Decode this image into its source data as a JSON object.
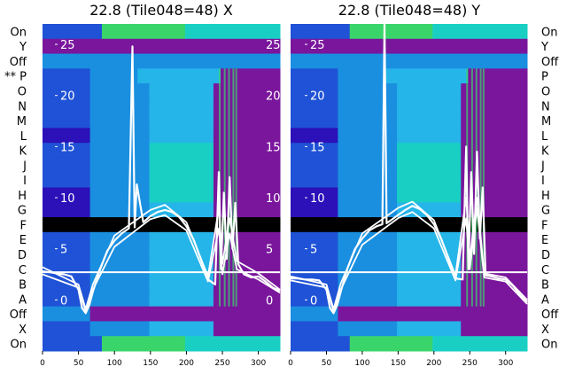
{
  "colors": {
    "band_colors": [
      "#2c10b8",
      "#1f52d6",
      "#1a8fe0",
      "#25b5e8",
      "#19cfc4",
      "#3ad56a",
      "#22e81c"
    ],
    "purple": "#7a169c",
    "trace": "#ffffff",
    "gap": "#000000"
  },
  "chart_data": [
    {
      "type": "heatmap",
      "title": "22.8 (Tile048=48) X",
      "row_labels": [
        "On",
        "Y",
        "Off",
        "** P",
        "O",
        "N",
        "M",
        "L",
        "K",
        "J",
        "I",
        "H",
        "G",
        "F",
        "E",
        "D",
        "C",
        "B",
        "A",
        "Off",
        "X",
        "On"
      ],
      "xlim": [
        0,
        330
      ],
      "ylim": [
        -5,
        27
      ],
      "x_ticks": [
        0,
        50,
        100,
        150,
        200,
        250,
        300
      ],
      "y_ticks": [
        0,
        5,
        10,
        15,
        20,
        25
      ],
      "grid": false,
      "series": [
        {
          "x": [
            0,
            10,
            20,
            30,
            40,
            50,
            55,
            60,
            65,
            70,
            80,
            90,
            100,
            110,
            120,
            125,
            128,
            131,
            140,
            150,
            160,
            170,
            180,
            190,
            200,
            210,
            220,
            230,
            240,
            245,
            248,
            252,
            256,
            260,
            264,
            268,
            272,
            280,
            290,
            300,
            310,
            320,
            330
          ],
          "y": [
            2.8,
            2.7,
            2.6,
            2.5,
            2.3,
            1.0,
            -0.8,
            -1.3,
            -0.5,
            0.8,
            3.0,
            4.8,
            5.8,
            6.5,
            7.0,
            24.8,
            7.1,
            11.3,
            7.6,
            8.2,
            8.6,
            8.8,
            8.6,
            8.1,
            7.2,
            5.9,
            4.0,
            2.0,
            1.5,
            12.5,
            3.0,
            10.5,
            4.0,
            12.0,
            5.0,
            9.5,
            3.5,
            2.5,
            2.2,
            2.3,
            1.8,
            1.2,
            0.9
          ]
        },
        {
          "x": [
            0,
            50,
            60,
            70,
            100,
            150,
            170,
            200,
            230,
            245,
            250,
            260,
            270,
            300,
            330
          ],
          "y": [
            2.5,
            1.2,
            -1.1,
            1.0,
            5.2,
            7.9,
            8.3,
            6.8,
            1.8,
            7.0,
            2.5,
            6.5,
            3.0,
            2.0,
            0.7
          ]
        },
        {
          "x": [
            0,
            50,
            60,
            70,
            100,
            150,
            170,
            200,
            230,
            245,
            250,
            260,
            270,
            300,
            330
          ],
          "y": [
            3.2,
            1.5,
            -0.9,
            1.5,
            6.3,
            8.8,
            9.3,
            7.6,
            2.3,
            9.0,
            3.5,
            8.0,
            3.8,
            2.6,
            1.0
          ]
        }
      ]
    },
    {
      "type": "heatmap",
      "title": "22.8 (Tile048=48) Y",
      "row_labels": [
        "On",
        "Y",
        "Off",
        "P",
        "O",
        "N",
        "M",
        "L",
        "K",
        "J",
        "I",
        "H",
        "G",
        "F",
        "E",
        "D",
        "C",
        "B",
        "A",
        "Off",
        "X",
        "On"
      ],
      "xlim": [
        0,
        330
      ],
      "ylim": [
        -5,
        27
      ],
      "x_ticks": [
        0,
        50,
        100,
        150,
        200,
        250,
        300
      ],
      "y_ticks": [
        0,
        5,
        10,
        15,
        20,
        25
      ],
      "grid": false,
      "series": [
        {
          "x": [
            0,
            10,
            20,
            30,
            40,
            50,
            55,
            60,
            65,
            70,
            80,
            90,
            100,
            110,
            120,
            128,
            131,
            134,
            140,
            150,
            160,
            170,
            180,
            190,
            200,
            210,
            220,
            230,
            240,
            245,
            248,
            252,
            256,
            260,
            264,
            268,
            272,
            280,
            290,
            300,
            310,
            320,
            330
          ],
          "y": [
            2.1,
            2.1,
            2.0,
            2.0,
            1.9,
            1.0,
            -0.8,
            -1.3,
            -0.5,
            0.8,
            3.2,
            5.0,
            6.0,
            6.8,
            7.2,
            7.4,
            27.0,
            7.5,
            7.8,
            8.3,
            8.8,
            9.2,
            8.9,
            8.3,
            7.4,
            6.0,
            4.1,
            2.1,
            2.0,
            15.0,
            3.0,
            12.5,
            4.5,
            14.5,
            6.0,
            11.0,
            2.4,
            2.3,
            2.1,
            2.0,
            1.4,
            0.5,
            -0.2
          ]
        },
        {
          "x": [
            0,
            50,
            60,
            70,
            100,
            150,
            170,
            200,
            230,
            245,
            250,
            260,
            270,
            300,
            330
          ],
          "y": [
            1.9,
            1.2,
            -1.1,
            1.0,
            5.4,
            8.0,
            8.6,
            7.0,
            1.9,
            8.0,
            3.0,
            9.0,
            2.2,
            1.8,
            -0.4
          ]
        },
        {
          "x": [
            0,
            50,
            60,
            70,
            100,
            150,
            170,
            200,
            230,
            245,
            250,
            260,
            270,
            300,
            330
          ],
          "y": [
            2.3,
            1.5,
            -0.9,
            1.6,
            6.5,
            9.0,
            9.6,
            7.8,
            2.4,
            10.0,
            4.0,
            10.0,
            2.6,
            2.2,
            0.0
          ]
        }
      ]
    }
  ]
}
